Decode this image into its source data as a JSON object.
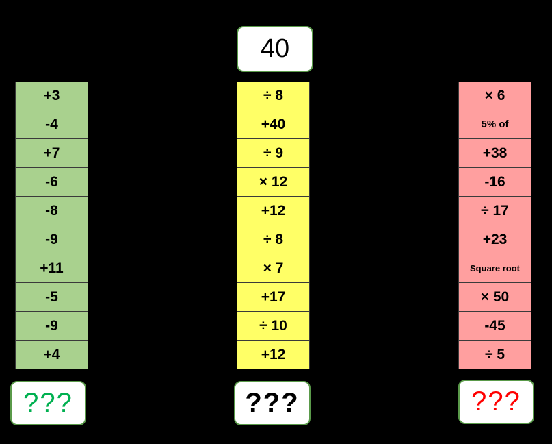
{
  "start_value": "40",
  "columns": {
    "green": {
      "ops": [
        "+3",
        "-4",
        "+7",
        "-6",
        "-8",
        "-9",
        "+11",
        "-5",
        "-9",
        "+4"
      ],
      "answer": "???",
      "color": "#a9d18e",
      "answer_color": "#00b050"
    },
    "yellow": {
      "ops": [
        "÷ 8",
        "+40",
        "÷ 9",
        "× 12",
        "+12",
        "÷ 8",
        "× 7",
        "+17",
        "÷ 10",
        "+12"
      ],
      "answer": "???",
      "color": "#ffff66",
      "answer_color": "#000000"
    },
    "red": {
      "ops": [
        "× 6",
        "5%  of",
        "+38",
        "-16",
        "÷ 17",
        "+23",
        "Square root",
        "× 50",
        "-45",
        "÷ 5"
      ],
      "answer": "???",
      "color": "#ff9f9f",
      "answer_color": "#ff0000"
    }
  }
}
